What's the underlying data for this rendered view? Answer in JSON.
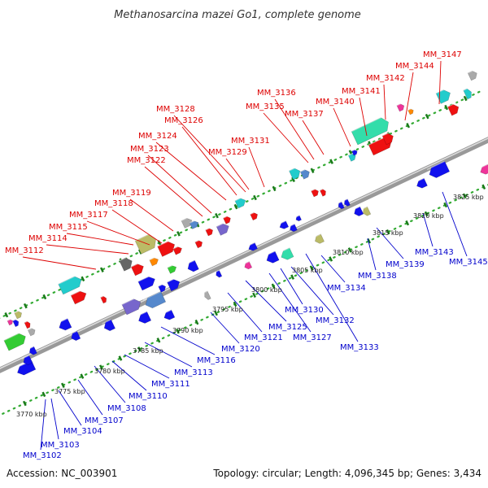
{
  "title": "Methanosarcina mazei Go1, complete genome",
  "accession": "Accession: NC_003901",
  "summary": "Topology: circular; Length: 4,096,345 bp; Genes: 3,434",
  "colors": {
    "forward_label": "#dd0000",
    "reverse_label": "#0000cc",
    "backbone": "#999999",
    "tick": "#1a7a1a",
    "dots": "#33aa33"
  },
  "scale_labels": [
    "3770 kbp",
    "3775 kbp",
    "3780 kbp",
    "3785 kbp",
    "3790 kbp",
    "3795 kbp",
    "3800 kbp",
    "3805 kbp",
    "3810 kbp",
    "3815 kbp",
    "3820 kbp",
    "3825 kbp"
  ],
  "forward_gene_labels": [
    "MM_3112",
    "MM_3114",
    "MM_3115",
    "MM_3117",
    "MM_3118",
    "MM_3119",
    "MM_3122",
    "MM_3123",
    "MM_3124",
    "MM_3126",
    "MM_3128",
    "MM_3129",
    "MM_3131",
    "MM_3135",
    "MM_3136",
    "MM_3137",
    "MM_3140",
    "MM_3141",
    "MM_3142",
    "MM_3144",
    "MM_3147"
  ],
  "reverse_gene_labels": [
    "MM_3102",
    "MM_3103",
    "MM_3104",
    "MM_3107",
    "MM_3108",
    "MM_3110",
    "MM_3111",
    "MM_3113",
    "MM_3116",
    "MM_3120",
    "MM_3121",
    "MM_3125",
    "MM_3127",
    "MM_3130",
    "MM_3132",
    "MM_3133",
    "MM_3134",
    "MM_3138",
    "MM_3139",
    "MM_3143",
    "MM_3145"
  ],
  "feature_colors": [
    "#ee1111",
    "#1111ee",
    "#22cccc",
    "#bbbb66",
    "#666666",
    "#7766cc",
    "#ff8800",
    "#ee3399",
    "#33cc33",
    "#5588cc",
    "#aaaaaa",
    "#33ddaa"
  ]
}
